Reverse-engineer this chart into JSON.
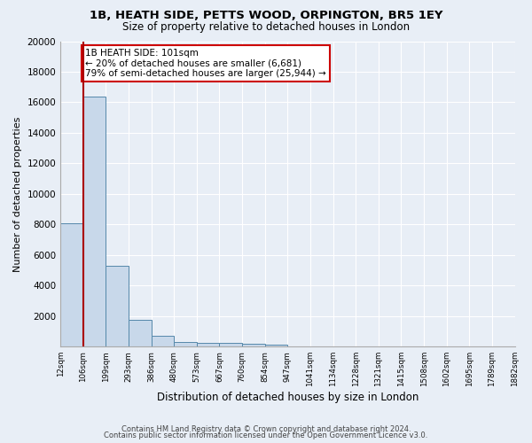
{
  "title1": "1B, HEATH SIDE, PETTS WOOD, ORPINGTON, BR5 1EY",
  "title2": "Size of property relative to detached houses in London",
  "xlabel": "Distribution of detached houses by size in London",
  "ylabel": "Number of detached properties",
  "bar_color": "#c8d8ea",
  "bar_edge_color": "#5588aa",
  "bg_color": "#e8eef6",
  "fig_color": "#e8eef6",
  "grid_color": "#ffffff",
  "vline_color": "#aa0000",
  "vline_x_idx": 1,
  "annotation_text": "1B HEATH SIDE: 101sqm\n← 20% of detached houses are smaller (6,681)\n79% of semi-detached houses are larger (25,944) →",
  "annotation_box_color": "#ffffff",
  "annotation_box_edge": "#cc0000",
  "categories": [
    "12sqm",
    "106sqm",
    "199sqm",
    "293sqm",
    "386sqm",
    "480sqm",
    "573sqm",
    "667sqm",
    "760sqm",
    "854sqm",
    "947sqm",
    "1041sqm",
    "1134sqm",
    "1228sqm",
    "1321sqm",
    "1415sqm",
    "1508sqm",
    "1602sqm",
    "1695sqm",
    "1789sqm",
    "1882sqm"
  ],
  "bin_edges": [
    0,
    1,
    2,
    3,
    4,
    5,
    6,
    7,
    8,
    9,
    10,
    11,
    12,
    13,
    14,
    15,
    16,
    17,
    18,
    19,
    20
  ],
  "values": [
    8100,
    16400,
    5300,
    1750,
    700,
    330,
    240,
    220,
    180,
    150,
    0,
    0,
    0,
    0,
    0,
    0,
    0,
    0,
    0,
    0
  ],
  "ylim": [
    0,
    20000
  ],
  "yticks": [
    0,
    2000,
    4000,
    6000,
    8000,
    10000,
    12000,
    14000,
    16000,
    18000,
    20000
  ],
  "footer1": "Contains HM Land Registry data © Crown copyright and database right 2024.",
  "footer2": "Contains public sector information licensed under the Open Government Licence v3.0."
}
